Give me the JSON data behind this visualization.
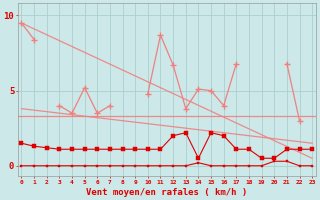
{
  "x": [
    0,
    1,
    2,
    3,
    4,
    5,
    6,
    7,
    8,
    9,
    10,
    11,
    12,
    13,
    14,
    15,
    16,
    17,
    18,
    19,
    20,
    21,
    22,
    23
  ],
  "spiky_y": [
    9.5,
    8.4,
    null,
    4.0,
    3.5,
    5.2,
    3.5,
    4.0,
    null,
    null,
    4.8,
    8.7,
    6.7,
    3.8,
    5.1,
    5.0,
    4.0,
    6.8,
    null,
    null,
    null,
    6.8,
    3.0,
    null
  ],
  "trend1_x": [
    0,
    23
  ],
  "trend1_y": [
    9.5,
    0.5
  ],
  "trend2_x": [
    0,
    23
  ],
  "trend2_y": [
    3.8,
    1.5
  ],
  "mean_line_y": 3.3,
  "red_upper_y": [
    1.5,
    1.3,
    1.2,
    1.1,
    1.1,
    1.1,
    1.1,
    1.1,
    1.1,
    1.1,
    1.1,
    1.1,
    2.0,
    2.2,
    0.5,
    2.2,
    2.0,
    1.1,
    1.1,
    0.5,
    0.5,
    1.1,
    1.1,
    1.1
  ],
  "red_lower_y": [
    0.0,
    0.0,
    0.0,
    0.0,
    0.0,
    0.0,
    0.0,
    0.0,
    0.0,
    0.0,
    0.0,
    0.0,
    0.0,
    0.0,
    0.2,
    0.0,
    0.0,
    0.0,
    0.0,
    0.0,
    0.3,
    0.3,
    0.0,
    0.0
  ],
  "bg_color": "#cce8e8",
  "grid_color": "#aacfcf",
  "pink_color": "#f08080",
  "red_color": "#dd0000",
  "xlabel": "Vent moyen/en rafales ( km/h )",
  "yticks": [
    0,
    5,
    10
  ],
  "xlim": [
    -0.3,
    23.3
  ],
  "ylim": [
    -0.7,
    10.8
  ]
}
